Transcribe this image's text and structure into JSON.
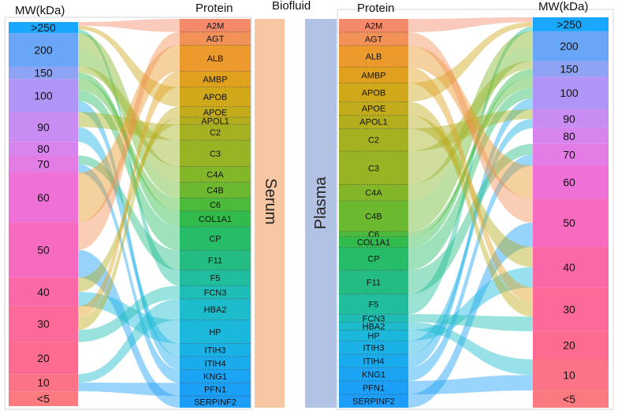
{
  "headers": {
    "mw_left": "MW(kDa)",
    "protein_left": "Protein",
    "biofluid": "Biofluid",
    "protein_right": "Protein",
    "mw_right": "MW(kDa)"
  },
  "biofluids": {
    "serum": "Serum",
    "plasma": "Plasma",
    "serum_color": "#f7c7a4",
    "plasma_color": "#b2c2e4"
  },
  "mw_categories": [
    ">250",
    "200",
    "150",
    "100",
    "90",
    "80",
    "70",
    "60",
    "50",
    "40",
    "30",
    "20",
    "10",
    "<5"
  ],
  "mw_colors": [
    "#1aa7ff",
    "#6aa6f7",
    "#8fa3f5",
    "#b095f6",
    "#c98cf2",
    "#d884ee",
    "#e47ce6",
    "#ef70d6",
    "#f66ac0",
    "#fb68a8",
    "#fd6a99",
    "#fd6c90",
    "#fb7386",
    "#fa7a80"
  ],
  "serum_proteins": [
    "A2M",
    "AGT",
    "ALB",
    "AMBP",
    "APOB",
    "APOE",
    "APOL1",
    "C2",
    "C3",
    "C4A",
    "C4B",
    "C6",
    "COL1A1",
    "CP",
    "F11",
    "F5",
    "FCN3",
    "HBA2",
    "HP",
    "ITIH3",
    "ITIH4",
    "KNG1",
    "PFN1",
    "SERPINF2"
  ],
  "plasma_proteins": [
    "A2M",
    "AGT",
    "ALB",
    "AMBP",
    "APOB",
    "APOE",
    "APOL1",
    "C2",
    "C3",
    "C4A",
    "C4B",
    "C6",
    "COL1A1",
    "CP",
    "F11",
    "F5",
    "FCN3",
    "HBA2",
    "HP",
    "ITIH3",
    "ITIH4",
    "KNG1",
    "PFN1",
    "SERPINF2"
  ],
  "protein_colors": [
    "#f58a6a",
    "#f29258",
    "#ec9a2c",
    "#e0a21e",
    "#d0a81a",
    "#c2ac1c",
    "#b4ae1f",
    "#a6b122",
    "#98b425",
    "#84b62a",
    "#6cb82e",
    "#4cba3a",
    "#30bb4c",
    "#27bc68",
    "#23bd84",
    "#20be9e",
    "#1ebeb6",
    "#1cbccc",
    "#1bb8dc",
    "#1ab2e6",
    "#1aabee",
    "#1aa4f3",
    "#1aa0f6",
    "#1b9df8"
  ],
  "protein_mw": {
    "A2M": ">250",
    "AGT": "50",
    "ALB": "60",
    "AMBP": "30",
    "APOB": ">250",
    "APOE": "30",
    "APOL1": "40",
    "C2": "90",
    "C3": "150",
    "C4A": "200",
    "C4B": "200",
    "C6": "100",
    "COL1A1": "150",
    "CP": "100",
    "F11": "70",
    "F5": ">250",
    "FCN3": "30",
    "HBA2": "10",
    "HP": "40",
    "ITIH3": "90",
    "ITIH4": "100",
    "KNG1": "70",
    "PFN1": "10",
    "SERPINF2": "50"
  },
  "serum_weights": [
    1,
    1,
    2,
    1.2,
    1.5,
    0.8,
    0.55,
    1.2,
    2,
    1.2,
    1.2,
    1,
    1.2,
    1.8,
    1.5,
    1.2,
    1,
    1.6,
    1.8,
    1,
    1,
    1,
    1,
    0.9
  ],
  "plasma_weights": [
    1,
    1,
    1.6,
    1.2,
    1.4,
    1,
    1,
    1.7,
    2.5,
    1.2,
    2.3,
    0.4,
    0.8,
    1.7,
    1.8,
    1.5,
    0.6,
    0.6,
    0.8,
    1,
    1,
    1,
    1,
    1
  ],
  "mw_left_weights": [
    0.9,
    2.7,
    1.0,
    2.7,
    2.4,
    1.1,
    1.4,
    4.0,
    4.5,
    2.3,
    2.9,
    2.6,
    1.4,
    1.2
  ],
  "mw_right_weights": [
    0.9,
    1.9,
    1.0,
    2.1,
    1.2,
    1.0,
    1.4,
    2.1,
    3.1,
    2.6,
    2.8,
    1.8,
    2.0,
    1.1
  ]
}
